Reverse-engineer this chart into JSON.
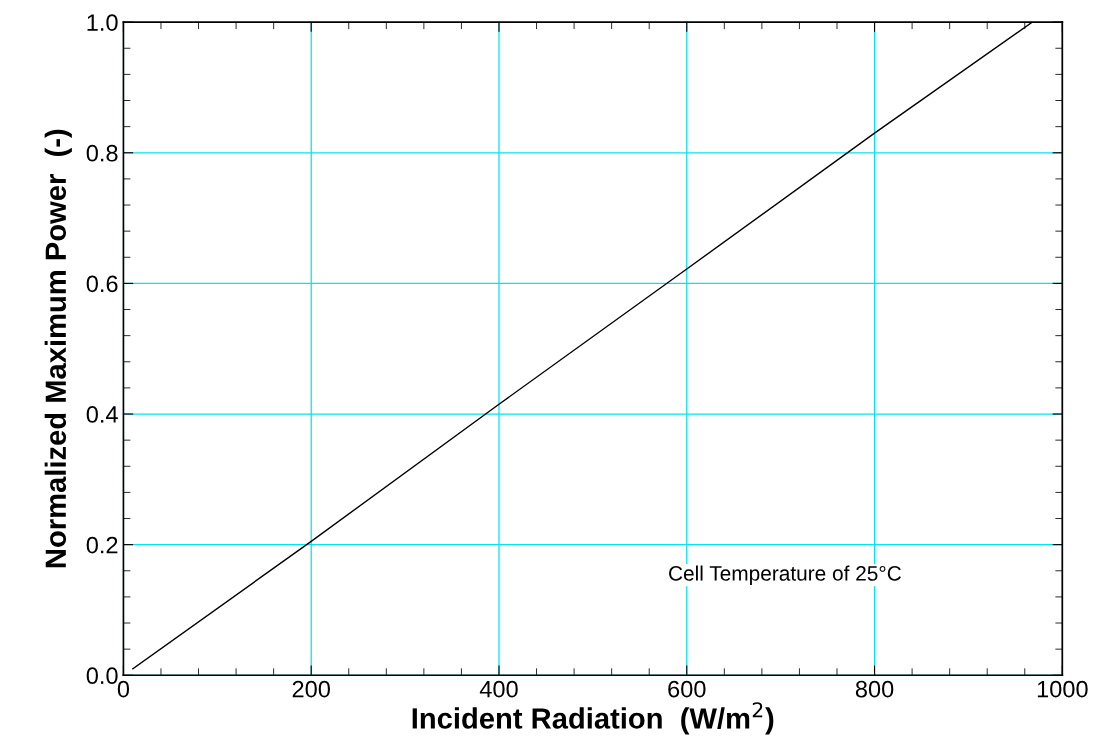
{
  "chart_data": {
    "type": "line",
    "xlabel": "Incident Radiation  (W/m$^{2}$)",
    "ylabel": "Normalized Maximum Power  (-)",
    "annotations": [
      "Cell Temperature of 25°C"
    ],
    "x": [
      10,
      200,
      400,
      600,
      800,
      968
    ],
    "series": [
      {
        "color": "#000000",
        "values": [
          0.01,
          0.205,
          0.415,
          0.622,
          0.83,
          1.0
        ]
      }
    ],
    "xlim": [
      0,
      1000
    ],
    "xticks": [
      0,
      200,
      400,
      600,
      800,
      1000
    ],
    "ylim": [
      0,
      1
    ],
    "yticks": [
      {
        "value": 0,
        "label": "0.0"
      },
      0.2,
      0.4,
      0.6,
      0.8,
      {
        "value": 1,
        "label": "1.0"
      }
    ],
    "grid": true,
    "marker": "none",
    "line_style": "solid"
  }
}
